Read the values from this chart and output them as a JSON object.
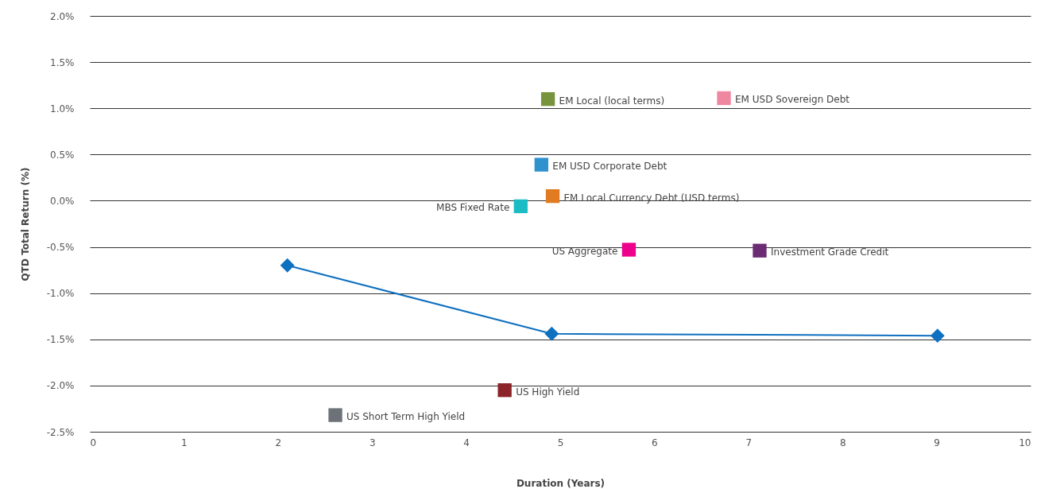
{
  "chart_data": {
    "type": "scatter",
    "xlabel": "Duration (Years)",
    "ylabel": "QTD Total Return (%)",
    "xlim": [
      0,
      10
    ],
    "xticks": [
      0,
      1,
      2,
      3,
      4,
      5,
      6,
      7,
      8,
      9,
      10
    ],
    "ylim": [
      -2.5,
      2.0
    ],
    "yticks": [
      {
        "value": -2.5,
        "label": "-2.5%"
      },
      {
        "value": -2.0,
        "label": "-2.0%"
      },
      {
        "value": -1.5,
        "label": "-1.5%"
      },
      {
        "value": -1.0,
        "label": "-1.0%"
      },
      {
        "value": -0.5,
        "label": "-0.5%"
      },
      {
        "value": 0,
        "label": "0.0%"
      },
      {
        "value": 0.5,
        "label": "0.5%"
      },
      {
        "value": 1.0,
        "label": "1.0%"
      },
      {
        "value": 1.5,
        "label": "1.5%"
      },
      {
        "value": 2.0,
        "label": "2.0%"
      }
    ],
    "grid": "y",
    "series": [
      {
        "type": "line",
        "marker": "diamond",
        "color": "#0f70c0",
        "x": [
          2.1,
          4.91,
          9.01
        ],
        "values": [
          -0.7,
          -1.44,
          -1.46
        ]
      },
      {
        "marker": "square",
        "name": "EM Local (local terms)",
        "color": "#77933c",
        "x": [
          4.87
        ],
        "values": [
          1.1
        ]
      },
      {
        "marker": "square",
        "name": "EM USD Sovereign Debt",
        "color": "#ef87a0",
        "x": [
          6.74
        ],
        "values": [
          1.11
        ]
      },
      {
        "marker": "square",
        "name": "EM USD Corporate Debt",
        "color": "#2e92cf",
        "x": [
          4.8
        ],
        "values": [
          0.39
        ]
      },
      {
        "marker": "square",
        "name": "EM Local Currency Debt (USD terms)",
        "color": "#e07b22",
        "x": [
          4.92
        ],
        "values": [
          0.05
        ]
      },
      {
        "marker": "square",
        "name": "MBS Fixed Rate",
        "color": "#1bbcc4",
        "x": [
          4.58
        ],
        "values": [
          -0.06
        ]
      },
      {
        "marker": "square",
        "name": "US Aggregate",
        "color": "#ec008c",
        "x": [
          5.73
        ],
        "values": [
          -0.53
        ]
      },
      {
        "marker": "square",
        "name": "Investment Grade Credit",
        "color": "#6b2c74",
        "x": [
          7.12
        ],
        "values": [
          -0.54
        ]
      },
      {
        "marker": "square",
        "name": "US High Yield",
        "color": "#8b2328",
        "x": [
          4.41
        ],
        "values": [
          -2.05
        ]
      },
      {
        "marker": "square",
        "name": "US Short Term High Yield",
        "color": "#6d7178",
        "x": [
          2.61
        ],
        "values": [
          -2.32
        ]
      }
    ]
  }
}
